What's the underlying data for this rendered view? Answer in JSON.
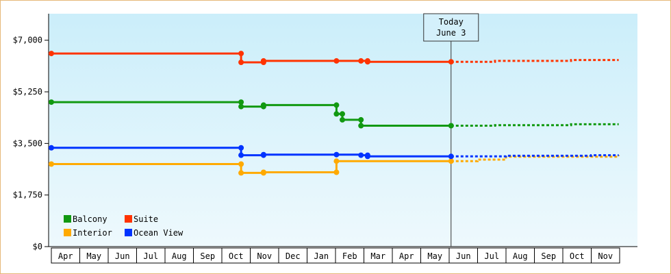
{
  "chart_data": {
    "type": "line",
    "style": "step",
    "title": "",
    "xlabel": "",
    "ylabel": "",
    "y_ticks": [
      "$0",
      "$1,750",
      "$3,500",
      "$5,250",
      "$7,000"
    ],
    "ylim": [
      0,
      7900
    ],
    "x_range": [
      "2019-04-01",
      "2020-11-30"
    ],
    "months": [
      "Apr",
      "May",
      "Jun",
      "Jul",
      "Aug",
      "Sep",
      "Oct",
      "Nov",
      "Dec",
      "Jan",
      "Feb",
      "Mar",
      "Apr",
      "May",
      "Jun",
      "Jul",
      "Aug",
      "Sep",
      "Oct",
      "Nov"
    ],
    "today": {
      "line1": "Today",
      "line2": "June 3",
      "date": "2020-06-03"
    },
    "legend_position": "bottom-left",
    "grid": false,
    "series": [
      {
        "name": "Balcony",
        "color": "#119911",
        "history": [
          [
            "2019-04-01",
            4900
          ],
          [
            "2019-10-22",
            4900
          ],
          [
            "2019-10-22",
            4750
          ],
          [
            "2019-11-15",
            4750
          ],
          [
            "2019-11-15",
            4800
          ],
          [
            "2020-02-02",
            4800
          ],
          [
            "2020-02-02",
            4500
          ],
          [
            "2020-02-08",
            4500
          ],
          [
            "2020-02-08",
            4300
          ],
          [
            "2020-02-27",
            4300
          ],
          [
            "2020-02-27",
            4100
          ],
          [
            "2020-06-03",
            4100
          ]
        ],
        "markers": [
          [
            "2019-04-01",
            4900
          ],
          [
            "2019-10-22",
            4900
          ],
          [
            "2019-10-22",
            4750
          ],
          [
            "2019-11-15",
            4750
          ],
          [
            "2019-11-15",
            4800
          ],
          [
            "2020-02-02",
            4800
          ],
          [
            "2020-02-02",
            4500
          ],
          [
            "2020-02-08",
            4500
          ],
          [
            "2020-02-08",
            4300
          ],
          [
            "2020-02-27",
            4300
          ],
          [
            "2020-02-27",
            4100
          ],
          [
            "2020-06-03",
            4100
          ]
        ],
        "forecast": [
          [
            "2020-06-03",
            4100
          ],
          [
            "2020-07-20",
            4100
          ],
          [
            "2020-07-20",
            4120
          ],
          [
            "2020-10-10",
            4120
          ],
          [
            "2020-10-10",
            4150
          ],
          [
            "2020-11-30",
            4150
          ]
        ]
      },
      {
        "name": "Suite",
        "color": "#ff3300",
        "history": [
          [
            "2019-04-01",
            6550
          ],
          [
            "2019-10-22",
            6550
          ],
          [
            "2019-10-22",
            6250
          ],
          [
            "2019-11-15",
            6250
          ],
          [
            "2019-11-15",
            6300
          ],
          [
            "2020-02-02",
            6300
          ],
          [
            "2020-02-27",
            6300
          ],
          [
            "2020-02-27",
            6300
          ],
          [
            "2020-03-05",
            6300
          ],
          [
            "2020-03-05",
            6270
          ],
          [
            "2020-06-03",
            6270
          ]
        ],
        "markers": [
          [
            "2019-04-01",
            6550
          ],
          [
            "2019-10-22",
            6550
          ],
          [
            "2019-10-22",
            6250
          ],
          [
            "2019-11-15",
            6250
          ],
          [
            "2019-11-15",
            6300
          ],
          [
            "2020-02-02",
            6300
          ],
          [
            "2020-02-27",
            6300
          ],
          [
            "2020-03-05",
            6300
          ],
          [
            "2020-03-05",
            6270
          ],
          [
            "2020-06-03",
            6270
          ]
        ],
        "forecast": [
          [
            "2020-06-03",
            6270
          ],
          [
            "2020-07-20",
            6270
          ],
          [
            "2020-07-20",
            6300
          ],
          [
            "2020-10-10",
            6300
          ],
          [
            "2020-10-10",
            6330
          ],
          [
            "2020-11-30",
            6330
          ]
        ]
      },
      {
        "name": "Interior",
        "color": "#ffaa00",
        "history": [
          [
            "2019-04-01",
            2800
          ],
          [
            "2019-10-22",
            2800
          ],
          [
            "2019-10-22",
            2500
          ],
          [
            "2019-11-15",
            2500
          ],
          [
            "2019-11-15",
            2520
          ],
          [
            "2020-02-02",
            2520
          ],
          [
            "2020-02-02",
            2900
          ],
          [
            "2020-06-03",
            2900
          ]
        ],
        "markers": [
          [
            "2019-04-01",
            2800
          ],
          [
            "2019-10-22",
            2800
          ],
          [
            "2019-10-22",
            2500
          ],
          [
            "2019-11-15",
            2500
          ],
          [
            "2019-11-15",
            2520
          ],
          [
            "2020-02-02",
            2520
          ],
          [
            "2020-02-02",
            2900
          ],
          [
            "2020-06-03",
            2900
          ]
        ],
        "forecast": [
          [
            "2020-06-03",
            2900
          ],
          [
            "2020-07-01",
            2900
          ],
          [
            "2020-07-01",
            2950
          ],
          [
            "2020-08-01",
            2950
          ],
          [
            "2020-08-01",
            3050
          ],
          [
            "2020-11-30",
            3050
          ],
          [
            "2020-11-30",
            3100
          ]
        ]
      },
      {
        "name": "Ocean View",
        "color": "#0033ff",
        "history": [
          [
            "2019-04-01",
            3350
          ],
          [
            "2019-10-22",
            3350
          ],
          [
            "2019-10-22",
            3100
          ],
          [
            "2019-11-15",
            3100
          ],
          [
            "2019-11-15",
            3120
          ],
          [
            "2020-02-02",
            3120
          ],
          [
            "2020-02-02",
            3120
          ],
          [
            "2020-02-27",
            3120
          ],
          [
            "2020-02-27",
            3100
          ],
          [
            "2020-03-05",
            3100
          ],
          [
            "2020-03-05",
            3060
          ],
          [
            "2020-06-03",
            3060
          ]
        ],
        "markers": [
          [
            "2019-04-01",
            3350
          ],
          [
            "2019-10-22",
            3350
          ],
          [
            "2019-10-22",
            3100
          ],
          [
            "2019-11-15",
            3100
          ],
          [
            "2019-11-15",
            3120
          ],
          [
            "2020-02-02",
            3120
          ],
          [
            "2020-02-27",
            3100
          ],
          [
            "2020-03-05",
            3100
          ],
          [
            "2020-03-05",
            3060
          ],
          [
            "2020-06-03",
            3060
          ]
        ],
        "forecast": [
          [
            "2020-06-03",
            3060
          ],
          [
            "2020-08-01",
            3060
          ],
          [
            "2020-08-01",
            3080
          ],
          [
            "2020-11-01",
            3080
          ],
          [
            "2020-11-01",
            3100
          ],
          [
            "2020-11-30",
            3100
          ]
        ]
      }
    ]
  }
}
